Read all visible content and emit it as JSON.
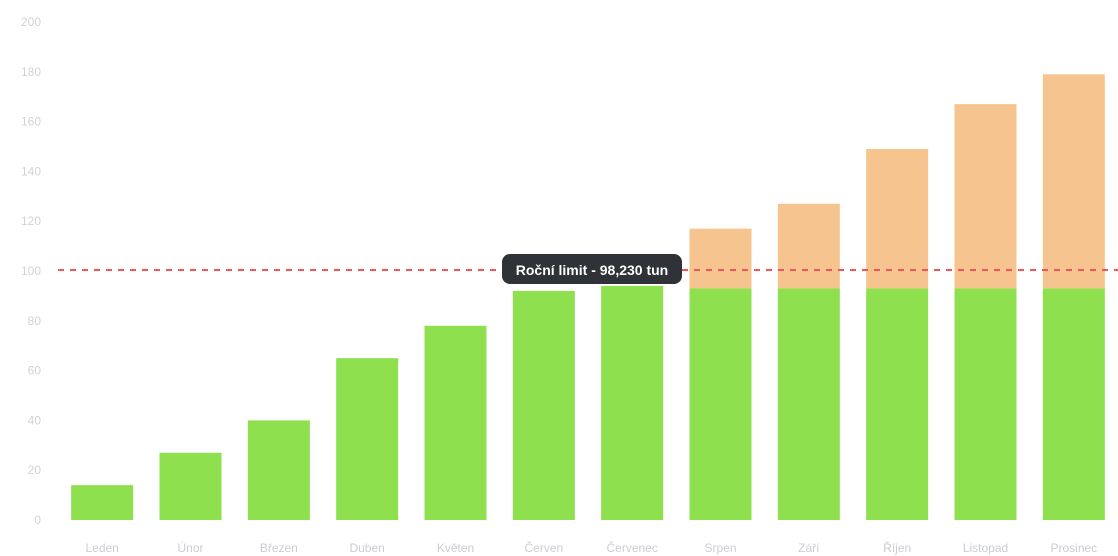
{
  "chart_data": {
    "type": "bar",
    "stacked": true,
    "categories": [
      "Leden",
      "Únor",
      "Březen",
      "Duben",
      "Květen",
      "Červen",
      "Červenec",
      "Srpen",
      "Září",
      "Říjen",
      "Listopad",
      "Prosinec"
    ],
    "series": [
      {
        "values": [
          14,
          27,
          40,
          65,
          78,
          92,
          94,
          93,
          93,
          93,
          93,
          93
        ],
        "color": "#8ee04e"
      },
      {
        "values": [
          0,
          0,
          0,
          0,
          0,
          0,
          0,
          24,
          34,
          56,
          74,
          86
        ],
        "color": "#f6c48e"
      }
    ],
    "ylim": [
      0,
      200
    ],
    "yticks": [
      "0",
      "20",
      "40",
      "60",
      "80",
      "100",
      "120",
      "140",
      "160",
      "180",
      "200"
    ],
    "grid": false,
    "annotation": {
      "label": "Roční limit - 98,230 tun",
      "y": 100,
      "line_color": "#f2545b",
      "label_bg": "#2f3237"
    }
  }
}
